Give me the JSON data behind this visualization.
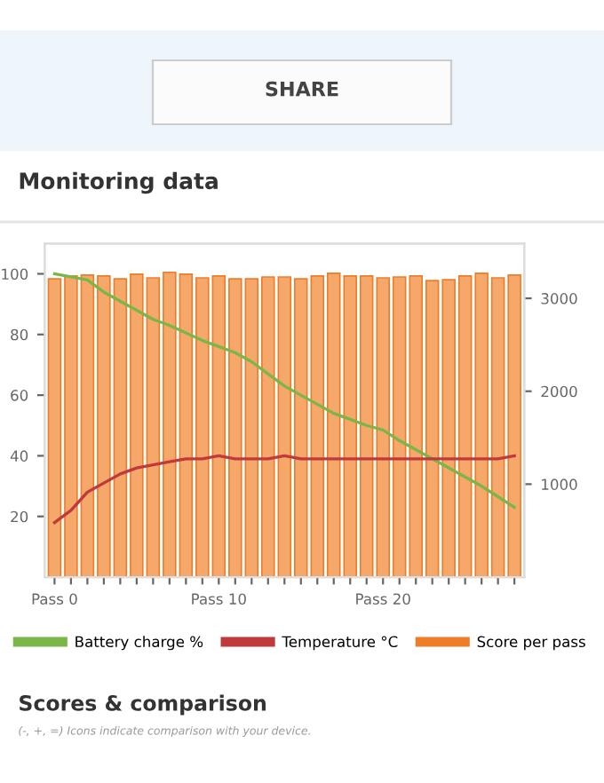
{
  "chart_data": {
    "type": "bar",
    "title": "Monitoring data",
    "categories": [
      "Pass 0",
      null,
      null,
      null,
      null,
      null,
      null,
      null,
      null,
      null,
      "Pass 10",
      null,
      null,
      null,
      null,
      null,
      null,
      null,
      null,
      null,
      "Pass 20",
      null,
      null,
      null,
      null,
      null,
      null,
      null,
      null
    ],
    "series": [
      {
        "name": "Battery charge %",
        "type": "line",
        "color": "#7ab648",
        "values": [
          100,
          99,
          98,
          94,
          91,
          88,
          85,
          83,
          80.5,
          78,
          76,
          74,
          71,
          67,
          63,
          60,
          57,
          54,
          52,
          50,
          48.5,
          45,
          42,
          39,
          36,
          33,
          30,
          26.5,
          23
        ]
      },
      {
        "name": "Temperature °C",
        "type": "line",
        "color": "#c0393b",
        "values": [
          18,
          22,
          28,
          31,
          34,
          36,
          37,
          38,
          39,
          39,
          40,
          39,
          39,
          39,
          40,
          39,
          39,
          39,
          39,
          39,
          39,
          39,
          39,
          39,
          39,
          39,
          39,
          39,
          40
        ]
      },
      {
        "name": "Score per pass",
        "axis": "y2",
        "color": "#f5a86a",
        "values": [
          3210,
          3240,
          3250,
          3240,
          3210,
          3260,
          3220,
          3280,
          3260,
          3220,
          3240,
          3210,
          3210,
          3230,
          3230,
          3210,
          3240,
          3270,
          3240,
          3240,
          3220,
          3230,
          3240,
          3190,
          3200,
          3240,
          3270,
          3220,
          3250
        ]
      }
    ],
    "ylim": [
      0,
      110
    ],
    "yticks": [
      20,
      40,
      60,
      80,
      100
    ],
    "y2lim": [
      0,
      3590
    ],
    "y2ticks": [
      1000,
      2000,
      3000
    ],
    "grid": false,
    "legend": "bottom",
    "annotations": [
      "SHARE",
      "Scores & comparison",
      "(-, +, =) Icons indicate comparison with your device."
    ]
  }
}
